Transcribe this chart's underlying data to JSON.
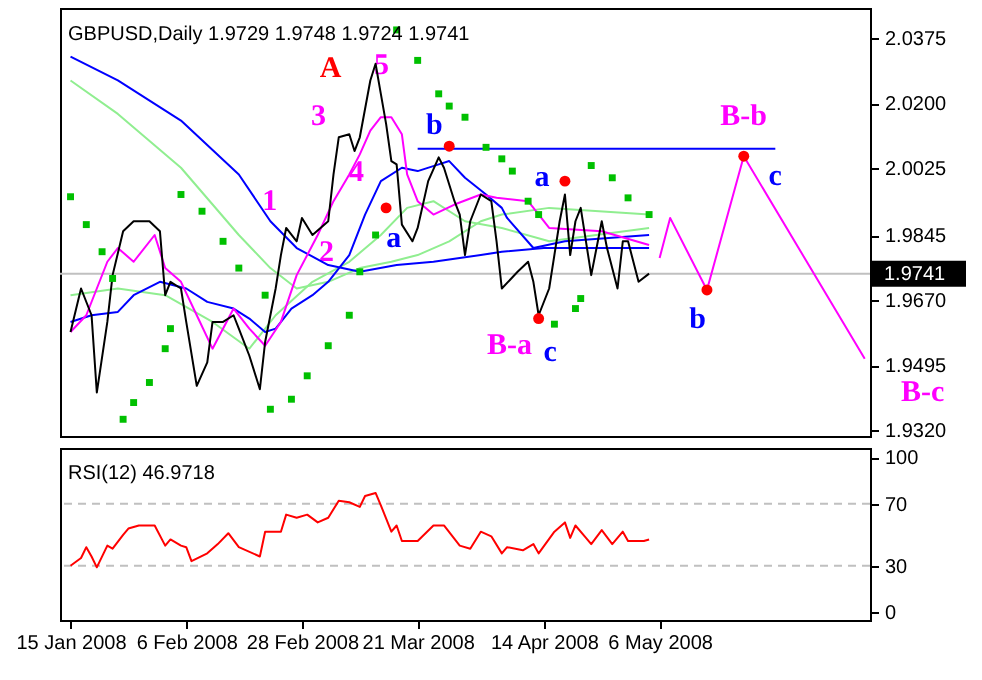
{
  "chart_data": [
    {
      "type": "line",
      "title": "GBPUSD,Daily  1.9729 1.9748 1.9724 1.9741",
      "xlim": [
        "2008-01-13",
        "2008-06-15"
      ],
      "ylim": [
        1.9304,
        2.0456
      ],
      "yticks": [
        2.0375,
        {
          "value": 2.02,
          "label": "2.0200"
        },
        2.0025,
        1.9845,
        {
          "value": 1.967,
          "label": "1.9670"
        },
        1.9495,
        {
          "value": 1.932,
          "label": "1.9320"
        }
      ],
      "tick_labels": "y",
      "series": [
        {
          "color": "#90ee90",
          "x": [
            "2008-01-15",
            "2008-01-24",
            "2008-02-05",
            "2008-02-16",
            "2008-02-22",
            "2008-02-27",
            "2008-03-04",
            "2008-03-10",
            "2008-03-16",
            "2008-03-21",
            "2008-03-27",
            "2008-04-02",
            "2008-04-06",
            "2008-04-15",
            "2008-05-04"
          ],
          "values": [
            2.0261,
            2.0171,
            2.0026,
            1.9845,
            1.9756,
            1.9701,
            1.9719,
            1.9756,
            1.9773,
            1.9791,
            1.9828,
            1.9882,
            1.99,
            1.9918,
            1.99
          ]
        },
        {
          "color": "#90ee90",
          "x": [
            "2008-01-15",
            "2008-01-24",
            "2008-02-02",
            "2008-02-11",
            "2008-02-18",
            "2008-02-23",
            "2008-03-01",
            "2008-03-08",
            "2008-03-14",
            "2008-03-19",
            "2008-03-24",
            "2008-03-30",
            "2008-04-06",
            "2008-04-15",
            "2008-05-04"
          ],
          "values": [
            1.9683,
            1.9701,
            1.9683,
            1.9611,
            1.9539,
            1.9629,
            1.9719,
            1.9773,
            1.9845,
            1.9918,
            1.9936,
            1.9882,
            1.9864,
            1.9828,
            1.9864
          ]
        },
        {
          "color": "#0000ff",
          "x": [
            "2008-01-15",
            "2008-01-24",
            "2008-02-05",
            "2008-02-16",
            "2008-02-22",
            "2008-02-27",
            "2008-03-04",
            "2008-03-10",
            "2008-03-17",
            "2008-03-24",
            "2008-04-02",
            "2008-04-06",
            "2008-04-14",
            "2008-05-04"
          ],
          "values": [
            2.0325,
            2.0261,
            2.0153,
            2.0008,
            1.9882,
            1.981,
            1.9764,
            1.9746,
            1.9764,
            1.9773,
            1.9791,
            1.98,
            1.981,
            1.981
          ]
        },
        {
          "color": "#0000ff",
          "x": [
            "2008-01-15",
            "2008-01-19",
            "2008-01-24",
            "2008-01-27",
            "2008-02-01",
            "2008-02-06",
            "2008-02-10",
            "2008-02-15",
            "2008-02-18",
            "2008-02-21",
            "2008-02-23",
            "2008-02-26",
            "2008-03-01",
            "2008-03-04",
            "2008-03-08",
            "2008-03-11",
            "2008-03-14",
            "2008-03-18",
            "2008-03-21",
            "2008-03-25",
            "2008-03-27",
            "2008-03-30",
            "2008-04-03",
            "2008-04-06",
            "2008-04-07",
            "2008-04-12",
            "2008-04-18",
            "2008-05-04"
          ],
          "values": [
            1.9611,
            1.9629,
            1.9638,
            1.9683,
            1.9719,
            1.9701,
            1.9665,
            1.9647,
            1.962,
            1.9584,
            1.9593,
            1.9647,
            1.9683,
            1.9719,
            1.9791,
            1.99,
            1.999,
            2.0026,
            2.0017,
            2.0035,
            2.0044,
            1.9999,
            1.9954,
            1.9918,
            1.9891,
            1.981,
            1.9828,
            1.9845
          ]
        },
        {
          "color": "#ff00ff",
          "x": [
            "2008-01-15",
            "2008-01-18",
            "2008-01-22",
            "2008-01-24",
            "2008-01-27",
            "2008-01-31",
            "2008-02-02",
            "2008-02-05",
            "2008-02-08",
            "2008-02-11",
            "2008-02-15",
            "2008-02-18",
            "2008-02-21",
            "2008-02-24",
            "2008-02-27",
            "2008-03-02",
            "2008-03-05",
            "2008-03-08",
            "2008-03-10",
            "2008-03-12",
            "2008-03-14",
            "2008-03-16",
            "2008-03-18",
            "2008-03-19",
            "2008-03-21",
            "2008-03-24",
            "2008-03-28",
            "2008-04-02",
            "2008-04-05",
            "2008-04-11",
            "2008-04-15",
            "2008-04-25",
            "2008-05-04"
          ],
          "values": [
            1.9584,
            1.9629,
            1.9773,
            1.981,
            1.9773,
            1.9845,
            1.9756,
            1.9719,
            1.9629,
            1.9539,
            1.9647,
            1.9593,
            1.9547,
            1.9611,
            1.9737,
            1.9845,
            1.9936,
            2.0008,
            2.0062,
            2.0126,
            2.0162,
            2.0162,
            2.0116,
            2.0008,
            1.9936,
            1.99,
            1.9927,
            1.9954,
            1.9945,
            1.9936,
            1.9864,
            1.9855,
            1.9818
          ]
        },
        {
          "color": "#000000",
          "x": [
            "2008-01-15",
            "2008-01-17",
            "2008-01-19",
            "2008-01-20",
            "2008-01-22",
            "2008-01-23",
            "2008-01-25",
            "2008-01-27",
            "2008-01-30",
            "2008-02-01",
            "2008-02-02",
            "2008-02-03",
            "2008-02-05",
            "2008-02-06",
            "2008-02-08",
            "2008-02-10",
            "2008-02-11",
            "2008-02-13",
            "2008-02-15",
            "2008-02-16",
            "2008-02-18",
            "2008-02-20",
            "2008-02-21",
            "2008-02-23",
            "2008-02-24",
            "2008-02-25",
            "2008-02-27",
            "2008-02-28",
            "2008-03-01",
            "2008-03-04",
            "2008-03-05",
            "2008-03-06",
            "2008-03-08",
            "2008-03-09",
            "2008-03-10",
            "2008-03-12",
            "2008-03-13",
            "2008-03-14",
            "2008-03-15",
            "2008-03-16",
            "2008-03-17",
            "2008-03-18",
            "2008-03-20",
            "2008-03-21",
            "2008-03-23",
            "2008-03-25",
            "2008-03-26",
            "2008-03-28",
            "2008-03-29",
            "2008-03-30",
            "2008-03-31",
            "2008-04-02",
            "2008-04-04",
            "2008-04-05",
            "2008-04-06",
            "2008-04-09",
            "2008-04-11",
            "2008-04-12",
            "2008-04-13",
            "2008-04-15",
            "2008-04-17",
            "2008-04-18",
            "2008-04-19",
            "2008-04-20",
            "2008-04-21",
            "2008-04-23",
            "2008-04-25",
            "2008-04-26",
            "2008-04-28",
            "2008-04-29",
            "2008-04-30",
            "2008-05-02",
            "2008-05-04"
          ],
          "values": [
            1.9584,
            1.9701,
            1.9629,
            1.9421,
            1.9611,
            1.9737,
            1.9855,
            1.9882,
            1.9882,
            1.9855,
            1.9683,
            1.9719,
            1.9701,
            1.9611,
            1.9439,
            1.9502,
            1.9611,
            1.9611,
            1.9629,
            1.9593,
            1.952,
            1.943,
            1.9557,
            1.9701,
            1.9791,
            1.9864,
            1.9828,
            1.9891,
            1.9845,
            1.9882,
            2.0008,
            2.0108,
            2.0116,
            2.0071,
            2.0108,
            2.0261,
            2.0306,
            2.0225,
            2.0144,
            2.0044,
            2.0035,
            1.9873,
            1.9828,
            1.9864,
            1.999,
            2.0054,
            2.0026,
            1.9936,
            1.99,
            1.9791,
            1.9882,
            1.9954,
            1.9936,
            1.9828,
            1.9701,
            1.9746,
            1.9773,
            1.9719,
            1.9629,
            1.9701,
            1.9882,
            1.9954,
            1.9791,
            1.9882,
            1.9918,
            1.9737,
            1.9882,
            1.981,
            1.9701,
            1.9828,
            1.9828,
            1.9719,
            1.9741
          ]
        },
        {
          "type": "line",
          "color": "#0000ff",
          "x": [
            "2008-03-21",
            "2008-05-28"
          ],
          "values": [
            2.0077,
            2.0077
          ]
        },
        {
          "type": "line",
          "color": "#ff00ff",
          "x": [
            "2008-05-06",
            "2008-05-08",
            "2008-05-15",
            "2008-05-22",
            "2008-06-14"
          ],
          "values": [
            1.9783,
            1.9891,
            1.9697,
            2.0057,
            1.9512
          ]
        },
        {
          "type": "scatter",
          "marker": "square",
          "color": "#00c000",
          "x": [
            "2008-01-15",
            "2008-01-18",
            "2008-01-21",
            "2008-01-23",
            "2008-01-25",
            "2008-01-27",
            "2008-01-30",
            "2008-02-02",
            "2008-02-03",
            "2008-02-05",
            "2008-02-09",
            "2008-02-13",
            "2008-02-16",
            "2008-02-21",
            "2008-02-22",
            "2008-02-26",
            "2008-02-29",
            "2008-03-04",
            "2008-03-08",
            "2008-03-10",
            "2008-03-13",
            "2008-03-17",
            "2008-03-21",
            "2008-03-25",
            "2008-03-27",
            "2008-03-30",
            "2008-04-03",
            "2008-04-06",
            "2008-04-08",
            "2008-04-11",
            "2008-04-13",
            "2008-04-16",
            "2008-04-20",
            "2008-04-21",
            "2008-04-23",
            "2008-04-27",
            "2008-04-30",
            "2008-05-04"
          ],
          "values": [
            1.9948,
            1.9873,
            1.98,
            1.9728,
            1.9349,
            1.9394,
            1.9448,
            1.9539,
            1.9593,
            1.9954,
            1.9909,
            1.9828,
            1.9756,
            1.9683,
            1.9376,
            1.9403,
            1.9466,
            1.9547,
            1.9629,
            1.9746,
            1.9845,
            2.0397,
            2.0315,
            2.0225,
            2.0192,
            2.0162,
            2.0081,
            2.005,
            2.0017,
            1.9936,
            1.99,
            1.9605,
            1.9647,
            1.9674,
            2.0032,
            1.9999,
            1.9945,
            1.99
          ]
        },
        {
          "type": "scatter",
          "marker": "circle",
          "color": "#ff0000",
          "x": [
            "2008-03-15",
            "2008-03-27",
            "2008-04-13",
            "2008-04-18",
            "2008-05-15",
            "2008-05-22"
          ],
          "values": [
            1.9918,
            2.0084,
            1.962,
            1.999,
            1.9697,
            2.0057
          ]
        }
      ],
      "ref_lines": [
        {
          "axis": "y",
          "value": 1.9741,
          "label": "1.9741",
          "color": "#c0c0c0"
        }
      ],
      "annotations": [
        "A",
        "5",
        "3",
        "4",
        "1",
        "2",
        "a",
        "b",
        "a",
        "B-a",
        "c",
        "B-b",
        "c",
        "b",
        "B-c"
      ]
    },
    {
      "type": "line",
      "title": "RSI(12) 46.9718",
      "xlim": [
        "2008-01-13",
        "2008-06-15"
      ],
      "ylim": [
        -5,
        106
      ],
      "yticks": [
        0,
        30,
        70,
        100
      ],
      "xticks": [
        {
          "value": "2008-01-15",
          "label": "15 Jan 2008"
        },
        {
          "value": "2008-02-06",
          "label": "6 Feb 2008"
        },
        {
          "value": "2008-02-28",
          "label": "28 Feb 2008"
        },
        {
          "value": "2008-03-21",
          "label": "21 Mar 2008"
        },
        {
          "value": "2008-04-14",
          "label": "14 Apr 2008"
        },
        {
          "value": "2008-05-06",
          "label": "6 May 2008"
        }
      ],
      "ref_lines": [
        {
          "axis": "y",
          "value": 70,
          "color": "#c0c0c0",
          "line_style": "dashed"
        },
        {
          "axis": "y",
          "value": 30,
          "color": "#c0c0c0",
          "line_style": "dashed"
        }
      ],
      "series": [
        {
          "color": "#ff0000",
          "x": [
            "2008-01-15",
            "2008-01-17",
            "2008-01-18",
            "2008-01-19",
            "2008-01-20",
            "2008-01-22",
            "2008-01-23",
            "2008-01-25",
            "2008-01-26",
            "2008-01-28",
            "2008-01-31",
            "2008-02-02",
            "2008-02-03",
            "2008-02-05",
            "2008-02-06",
            "2008-02-07",
            "2008-02-10",
            "2008-02-12",
            "2008-02-14",
            "2008-02-16",
            "2008-02-20",
            "2008-02-21",
            "2008-02-24",
            "2008-02-25",
            "2008-02-27",
            "2008-02-29",
            "2008-03-02",
            "2008-03-04",
            "2008-03-06",
            "2008-03-08",
            "2008-03-10",
            "2008-03-11",
            "2008-03-13",
            "2008-03-14",
            "2008-03-16",
            "2008-03-17",
            "2008-03-18",
            "2008-03-21",
            "2008-03-24",
            "2008-03-26",
            "2008-03-29",
            "2008-03-31",
            "2008-04-02",
            "2008-04-04",
            "2008-04-06",
            "2008-04-07",
            "2008-04-10",
            "2008-04-12",
            "2008-04-13",
            "2008-04-16",
            "2008-04-18",
            "2008-04-19",
            "2008-04-20",
            "2008-04-22",
            "2008-04-23",
            "2008-04-25",
            "2008-04-27",
            "2008-04-29",
            "2008-04-30",
            "2008-05-02",
            "2008-05-03",
            "2008-05-04"
          ],
          "values": [
            30,
            35,
            42,
            36,
            29,
            43,
            41,
            50,
            54,
            56,
            56,
            43,
            47,
            43,
            42,
            33,
            38,
            44,
            51,
            42,
            36,
            52,
            52,
            63,
            61,
            63,
            58,
            61,
            72,
            71,
            68,
            75,
            77,
            69,
            52,
            56,
            46,
            46,
            56,
            56,
            43,
            41,
            52,
            49,
            38,
            42,
            40,
            44,
            38,
            52,
            58,
            48,
            56,
            48,
            44,
            53,
            44,
            52,
            46,
            46,
            46,
            47
          ]
        }
      ]
    }
  ]
}
